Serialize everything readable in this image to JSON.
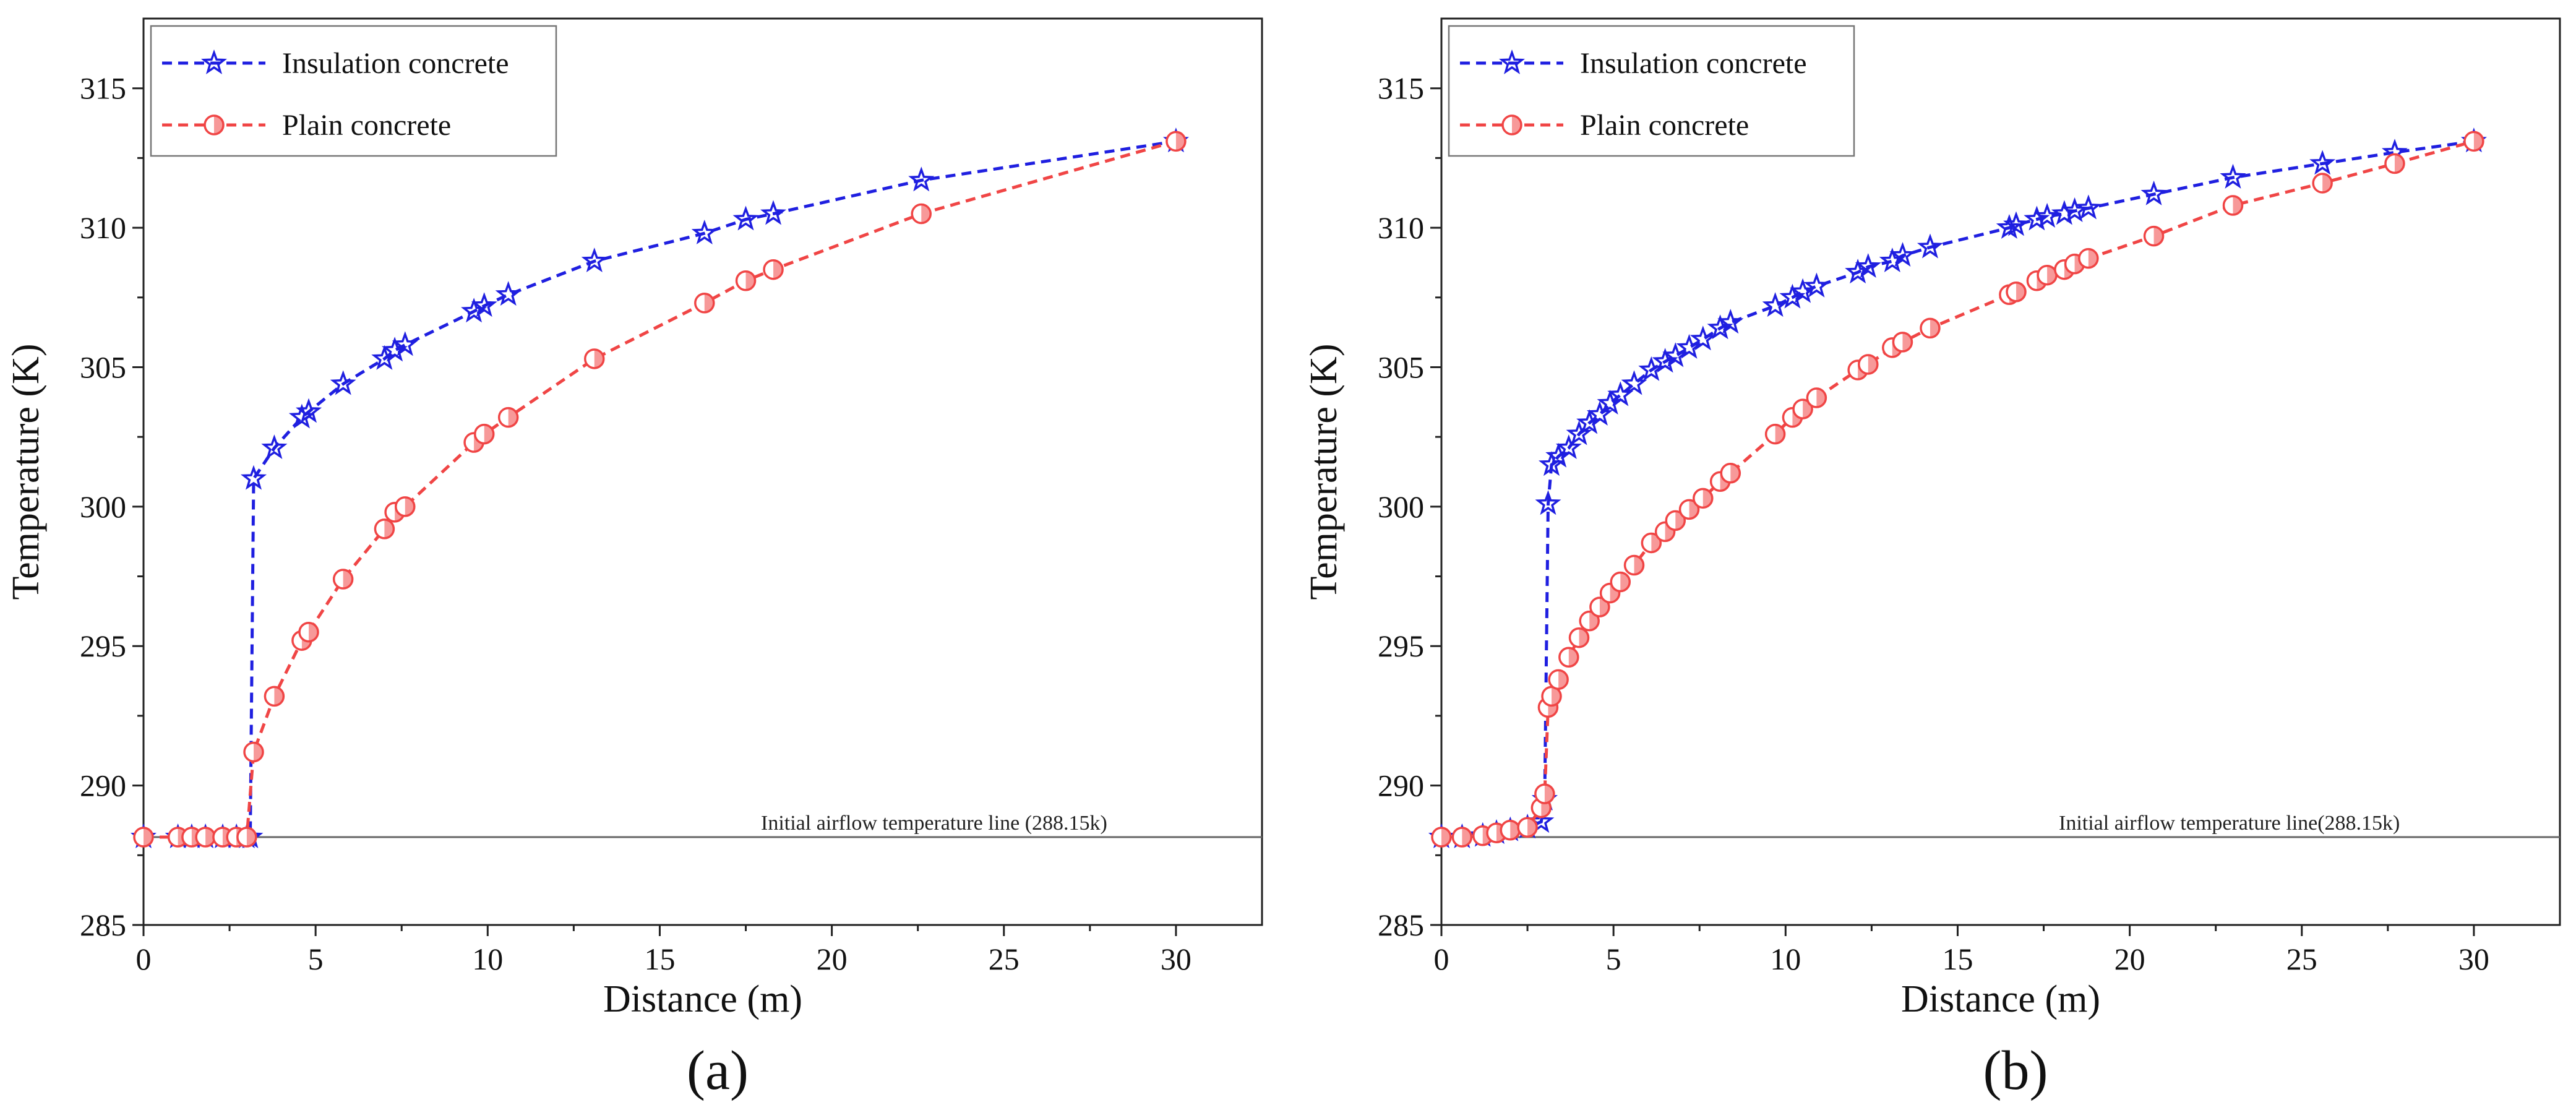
{
  "colors": {
    "insulation": "#1f1fe0",
    "plain": "#f04545",
    "reference": "#666666",
    "axis": "#222222"
  },
  "chart_data": [
    {
      "type": "line",
      "panel_label": "(a)",
      "xlabel": "Distance (m)",
      "ylabel": "Temperature (K)",
      "xlim": [
        0,
        32.5
      ],
      "ylim": [
        285,
        317.5
      ],
      "xticks": [
        0,
        5,
        10,
        15,
        20,
        25,
        30
      ],
      "yticks": [
        285,
        290,
        295,
        300,
        305,
        310,
        315
      ],
      "legend_position": "top-left",
      "reference_line": {
        "y": 288.15,
        "label": "Initial airflow temperature line (288.15k)"
      },
      "series": [
        {
          "name": "Insulation concrete",
          "marker": "star",
          "color": "#1f1fe0",
          "x": [
            0,
            1.0,
            1.4,
            1.8,
            2.3,
            2.7,
            3.0,
            3.1,
            3.2,
            3.8,
            4.6,
            4.8,
            5.8,
            7.0,
            7.3,
            7.6,
            9.6,
            9.9,
            10.6,
            13.1,
            16.3,
            17.5,
            18.3,
            22.6,
            30.0
          ],
          "y": [
            288.15,
            288.15,
            288.15,
            288.15,
            288.15,
            288.15,
            288.15,
            288.15,
            301.0,
            302.1,
            303.2,
            303.4,
            304.4,
            305.3,
            305.6,
            305.8,
            307.0,
            307.2,
            307.6,
            308.8,
            309.8,
            310.3,
            310.5,
            311.7,
            313.1
          ]
        },
        {
          "name": "Plain concrete",
          "marker": "circle",
          "color": "#f04545",
          "x": [
            0,
            1.0,
            1.4,
            1.8,
            2.3,
            2.7,
            3.0,
            3.2,
            3.8,
            4.6,
            4.8,
            5.8,
            7.0,
            7.3,
            7.6,
            9.6,
            9.9,
            10.6,
            13.1,
            16.3,
            17.5,
            18.3,
            22.6,
            30.0
          ],
          "y": [
            288.15,
            288.15,
            288.15,
            288.15,
            288.15,
            288.15,
            288.15,
            291.2,
            293.2,
            295.2,
            295.5,
            297.4,
            299.2,
            299.8,
            300.0,
            302.3,
            302.6,
            303.2,
            305.3,
            307.3,
            308.1,
            308.5,
            310.5,
            313.1
          ]
        }
      ]
    },
    {
      "type": "line",
      "panel_label": "(b)",
      "xlabel": "Distance (m)",
      "ylabel": "Temperature (K)",
      "xlim": [
        0,
        32.5
      ],
      "ylim": [
        285,
        317.5
      ],
      "xticks": [
        0,
        5,
        10,
        15,
        20,
        25,
        30
      ],
      "yticks": [
        285,
        290,
        295,
        300,
        305,
        310,
        315
      ],
      "legend_position": "top-left",
      "reference_line": {
        "y": 288.15,
        "label": "Initial airflow temperature line(288.15k)"
      },
      "series": [
        {
          "name": "Insulation concrete",
          "marker": "star",
          "color": "#1f1fe0",
          "x": [
            0,
            0.6,
            1.2,
            1.6,
            2.0,
            2.5,
            2.9,
            3.0,
            3.1,
            3.2,
            3.4,
            3.7,
            4.0,
            4.3,
            4.6,
            4.9,
            5.2,
            5.6,
            6.1,
            6.5,
            6.8,
            7.2,
            7.6,
            8.1,
            8.4,
            9.7,
            10.2,
            10.5,
            10.9,
            12.1,
            12.4,
            13.1,
            13.4,
            14.2,
            16.5,
            16.7,
            17.3,
            17.6,
            18.1,
            18.4,
            18.8,
            20.7,
            23.0,
            25.6,
            27.7,
            30.0
          ],
          "y": [
            288.15,
            288.15,
            288.2,
            288.3,
            288.4,
            288.5,
            288.7,
            289.5,
            300.1,
            301.5,
            301.8,
            302.1,
            302.6,
            303.0,
            303.3,
            303.7,
            304.0,
            304.4,
            304.9,
            305.2,
            305.4,
            305.7,
            306.0,
            306.4,
            306.6,
            307.2,
            307.5,
            307.7,
            307.9,
            308.4,
            308.6,
            308.8,
            309.0,
            309.3,
            310.0,
            310.1,
            310.3,
            310.4,
            310.5,
            310.6,
            310.7,
            311.2,
            311.8,
            312.3,
            312.7,
            313.1
          ]
        },
        {
          "name": "Plain concrete",
          "marker": "circle",
          "color": "#f04545",
          "x": [
            0,
            0.6,
            1.2,
            1.6,
            2.0,
            2.5,
            2.9,
            3.0,
            3.1,
            3.2,
            3.4,
            3.7,
            4.0,
            4.3,
            4.6,
            4.9,
            5.2,
            5.6,
            6.1,
            6.5,
            6.8,
            7.2,
            7.6,
            8.1,
            8.4,
            9.7,
            10.2,
            10.5,
            10.9,
            12.1,
            12.4,
            13.1,
            13.4,
            14.2,
            16.5,
            16.7,
            17.3,
            17.6,
            18.1,
            18.4,
            18.8,
            20.7,
            23.0,
            25.6,
            27.7,
            30.0
          ],
          "y": [
            288.15,
            288.15,
            288.2,
            288.3,
            288.4,
            288.5,
            289.2,
            289.7,
            292.8,
            293.2,
            293.8,
            294.6,
            295.3,
            295.9,
            296.4,
            296.9,
            297.3,
            297.9,
            298.7,
            299.1,
            299.5,
            299.9,
            300.3,
            300.9,
            301.2,
            302.6,
            303.2,
            303.5,
            303.9,
            304.9,
            305.1,
            305.7,
            305.9,
            306.4,
            307.6,
            307.7,
            308.1,
            308.3,
            308.5,
            308.7,
            308.9,
            309.7,
            310.8,
            311.6,
            312.3,
            313.1
          ]
        }
      ]
    }
  ]
}
